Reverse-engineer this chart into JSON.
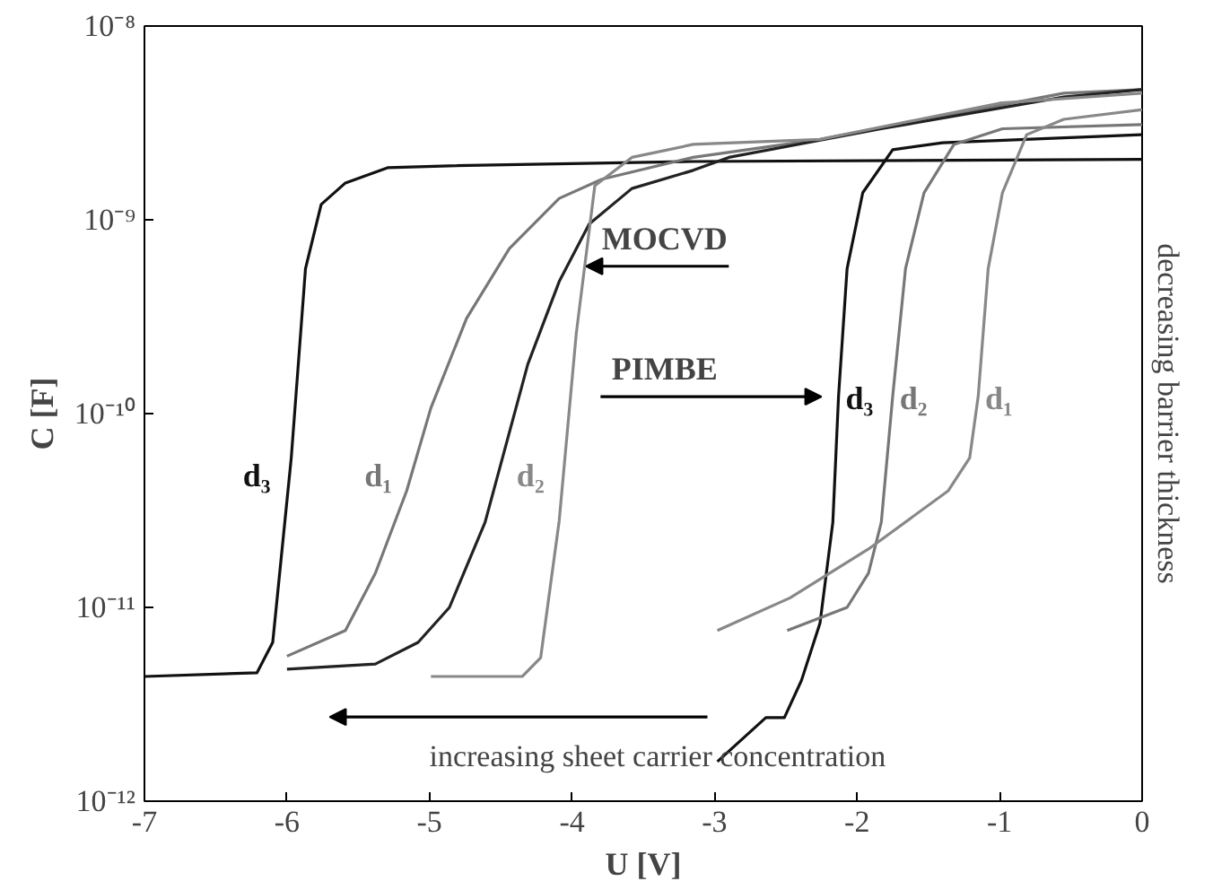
{
  "chart_data": {
    "type": "line",
    "xlabel": "U [V]",
    "ylabel": "C [F]",
    "log": "y",
    "grid": false,
    "legend": false,
    "marker": "none",
    "line_style": "solid",
    "xlim": [
      -7,
      0
    ],
    "xticks": [
      -7,
      -6,
      -5,
      -4,
      -3,
      -2,
      -1,
      0
    ],
    "ylim": [
      1e-12,
      1e-08
    ],
    "yticks": [
      {
        "value": 1e-12,
        "label": "10⁻¹²"
      },
      {
        "value": 1e-11,
        "label": "10⁻¹¹"
      },
      {
        "value": 1e-10,
        "label": "10⁻¹⁰"
      },
      {
        "value": 1e-09,
        "label": "10⁻⁹"
      },
      {
        "value": 1e-08,
        "label": "10⁻⁸"
      }
    ],
    "series": [
      {
        "name": "d₃",
        "color": "#111111",
        "x": [
          -7,
          -6.21,
          -6.1,
          -5.97,
          -5.87,
          -5.76,
          -5.59,
          -5.29,
          -4.86,
          -3.15,
          0
        ],
        "values": [
          4.4e-12,
          4.6e-12,
          6.6e-12,
          5.9e-11,
          5.6e-10,
          1.2e-09,
          1.55e-09,
          1.86e-09,
          1.9e-09,
          2e-09,
          2.05e-09
        ]
      },
      {
        "name": "d₁",
        "color": "#777777",
        "x": [
          -6.0,
          -5.59,
          -5.38,
          -5.16,
          -4.99,
          -4.74,
          -4.44,
          -4.09,
          -3.79,
          -3.15,
          -2.26,
          -0.55,
          0
        ],
        "values": [
          5.6e-12,
          7.6e-12,
          1.5e-11,
          4e-11,
          1.07e-10,
          3.1e-10,
          7.1e-10,
          1.29e-09,
          1.62e-09,
          2.1e-09,
          2.6e-09,
          4.5e-09,
          4.7e-09
        ]
      },
      {
        "color": "#222222",
        "x": [
          -6.0,
          -5.38,
          -5.08,
          -4.86,
          -4.61,
          -4.31,
          -4.09,
          -3.88,
          -3.58,
          -3.15,
          -2.9,
          -1.83,
          -0.55,
          0
        ],
        "values": [
          4.8e-12,
          5.1e-12,
          6.6e-12,
          1e-11,
          2.75e-11,
          1.8e-10,
          4.8e-10,
          9.5e-10,
          1.45e-09,
          1.8e-09,
          2.1e-09,
          2.95e-09,
          4.3e-09,
          4.7e-09
        ]
      },
      {
        "name": "d₂",
        "color": "#888888",
        "x": [
          -4.99,
          -4.35,
          -4.22,
          -4.09,
          -3.97,
          -3.84,
          -3.58,
          -3.15,
          -2.26,
          -1.0,
          0
        ],
        "values": [
          4.4e-12,
          4.4e-12,
          5.5e-12,
          2.8e-11,
          2.6e-10,
          1.5e-09,
          2.1e-09,
          2.45e-09,
          2.6e-09,
          4e-09,
          4.5e-09
        ]
      },
      {
        "name": "d₃",
        "color": "#111111",
        "x": [
          -2.98,
          -2.64,
          -2.51,
          -2.39,
          -2.26,
          -2.17,
          -2.13,
          -2.07,
          -1.96,
          -1.75,
          -1.4,
          0
        ],
        "values": [
          1.6e-12,
          2.7e-12,
          2.7e-12,
          4.2e-12,
          8.3e-12,
          2.75e-11,
          1.23e-10,
          5.6e-10,
          1.38e-09,
          2.3e-09,
          2.5e-09,
          2.75e-09
        ]
      },
      {
        "name": "d₂",
        "color": "#777777",
        "x": [
          -2.49,
          -2.07,
          -1.92,
          -1.83,
          -1.75,
          -1.66,
          -1.53,
          -1.32,
          -0.98,
          0
        ],
        "values": [
          7.6e-12,
          1e-11,
          1.5e-11,
          2.75e-11,
          1.23e-10,
          5.6e-10,
          1.38e-09,
          2.45e-09,
          2.95e-09,
          3.1e-09
        ]
      },
      {
        "name": "d₁",
        "color": "#888888",
        "x": [
          -2.98,
          -2.47,
          -1.92,
          -1.36,
          -1.21,
          -1.15,
          -1.08,
          -0.98,
          -0.81,
          -0.55,
          0
        ],
        "values": [
          7.6e-12,
          1.12e-11,
          2e-11,
          4e-11,
          5.9e-11,
          1.23e-10,
          5.6e-10,
          1.38e-09,
          2.75e-09,
          3.3e-09,
          3.7e-09
        ]
      }
    ],
    "annotations": [
      "MOCVD",
      "PIMBE",
      "increasing sheet carrier concentration",
      "decreasing barrier thickness"
    ]
  }
}
